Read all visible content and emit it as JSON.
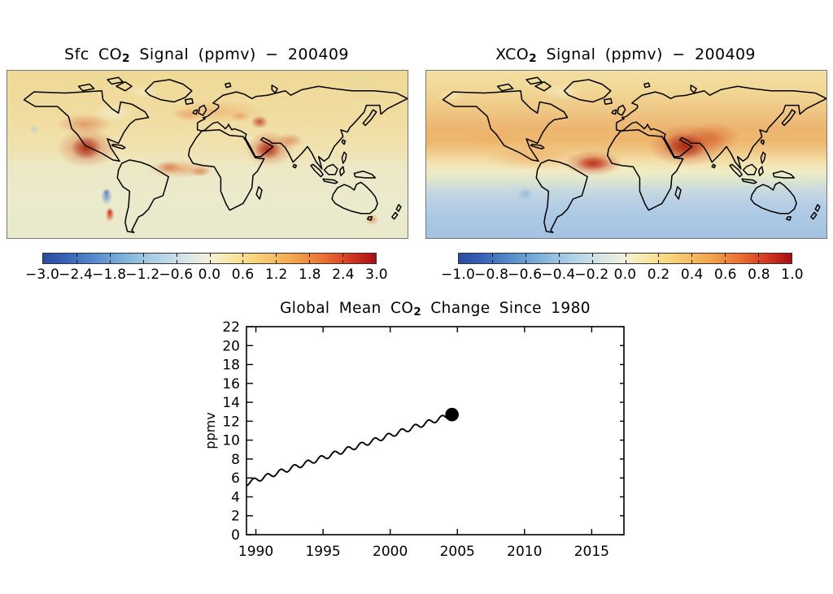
{
  "page": {
    "background": "#ffffff",
    "month_shown": "200409"
  },
  "chart_data": [
    {
      "type": "heatmap",
      "panel": "top-left",
      "title_parts": {
        "prefix": "Sfc CO",
        "sub": "2",
        "suffix": " Signal (ppmv) − 200409"
      },
      "units": "ppmv",
      "colorbar": {
        "min": -3.0,
        "max": 3.0,
        "step": 0.6,
        "tick_values": [
          -3.0,
          -2.4,
          -1.8,
          -1.2,
          -0.6,
          0.0,
          0.6,
          1.2,
          1.8,
          2.4,
          3.0
        ],
        "tick_labels": [
          "−3.0",
          "−2.4",
          "−1.8",
          "−1.2",
          "−0.6",
          "0.0",
          "0.6",
          "1.2",
          "1.8",
          "2.4",
          "3.0"
        ]
      },
      "palette": "blue → white → yellow → orange → dark red",
      "notable_features": [
        "strong positive anomaly (~+3) over central North America",
        "positive anomalies over north India / Himalaya, northeast China, Siberian band, Sahel",
        "small positive spot over southeast Australia",
        "negative (blue) anomaly over central South America with positive spot just south of it",
        "northern hemisphere weakly positive (tan), southern hemisphere near zero (pale)"
      ]
    },
    {
      "type": "heatmap",
      "panel": "top-right",
      "title_parts": {
        "prefix": "XCO",
        "sub": "2",
        "suffix": " Signal (ppmv) − 200409"
      },
      "units": "ppmv",
      "colorbar": {
        "min": -1.0,
        "max": 1.0,
        "step": 0.2,
        "tick_values": [
          -1.0,
          -0.8,
          -0.6,
          -0.4,
          -0.2,
          0.0,
          0.2,
          0.4,
          0.6,
          0.8,
          1.0
        ],
        "tick_labels": [
          "−1.0",
          "−0.8",
          "−0.6",
          "−0.4",
          "−0.2",
          "0.0",
          "0.2",
          "0.4",
          "0.6",
          "0.8",
          "1.0"
        ]
      },
      "palette": "blue → white → yellow → orange → dark red",
      "notable_features": [
        "smooth zonal gradient: positive in northern hemisphere, negative in southern hemisphere",
        "strongest positive (~+1) over north India / Himalaya extending into China",
        "secondary maximum over west Africa / Sahara",
        "weak negative spot over central South America",
        "southern oceans uniformly light blue"
      ]
    },
    {
      "type": "line",
      "panel": "bottom",
      "title_parts": {
        "prefix": "Global Mean CO",
        "sub": "2",
        "suffix": " Change Since 1980"
      },
      "xlabel": "",
      "ylabel": "ppmv",
      "xlim": [
        1989.3,
        2017.4
      ],
      "ylim": [
        0,
        22
      ],
      "xticks": [
        1990,
        1995,
        2000,
        2005,
        2010,
        2015
      ],
      "yticks": [
        0,
        2,
        4,
        6,
        8,
        10,
        12,
        14,
        16,
        18,
        20,
        22
      ],
      "grid": false,
      "series": {
        "name": "global mean CO2 change since 1980",
        "color": "#000000",
        "start_year": 1989.3,
        "end_year": 2004.6,
        "start_value": 5.45,
        "end_value": 12.7,
        "seasonal_amplitude": 0.25,
        "annual_values": {
          "years": [
            1990,
            1991,
            1992,
            1993,
            1994,
            1995,
            1996,
            1997,
            1998,
            1999,
            2000,
            2001,
            2002,
            2003,
            2004
          ],
          "values": [
            5.8,
            6.3,
            6.8,
            7.2,
            7.7,
            8.2,
            8.7,
            9.2,
            9.6,
            10.1,
            10.6,
            11.1,
            11.5,
            12.0,
            12.5
          ]
        }
      },
      "end_marker": {
        "year": 2004.6,
        "value": 12.7,
        "style": "filled black circle"
      }
    }
  ],
  "render": {
    "colormap_stops": [
      "#2a4aa0 0%",
      "#3560b4 6%",
      "#4f85c8 14%",
      "#74a8d6 22%",
      "#9cc4e0 30%",
      "#c2dbe8 38%",
      "#e0e9e6 45%",
      "#f4f0da 50%",
      "#f8e8a6 56%",
      "#f8d67e 63%",
      "#f6bc60 70%",
      "#f09c48 77%",
      "#e87434 84%",
      "#dd4a26 90%",
      "#c62a1c 95%",
      "#a50f15 100%"
    ],
    "maps": [
      {
        "base": "linear-gradient(180deg,#efd997 0%,#f1dda2 30%,#f0e3b2 48%,#ede8c5 58%,#ebeacd 72%,#e9e9cc 100%)",
        "blobs": [
          [
            95,
            66,
            48,
            18,
            "rgba(208,92,48,0.5)"
          ],
          [
            98,
            95,
            52,
            34,
            "rgba(196,60,28,0.55)"
          ],
          [
            97,
            95,
            26,
            20,
            "rgba(148,16,8,0.9)"
          ],
          [
            33,
            72,
            8,
            6,
            "rgba(170,205,228,0.8)"
          ],
          [
            130,
            52,
            36,
            16,
            "rgba(247,241,216,0.6)"
          ],
          [
            168,
            26,
            30,
            12,
            "rgba(247,241,214,0.55)"
          ],
          [
            213,
            121,
            58,
            16,
            "rgba(226,122,56,0.5)"
          ],
          [
            199,
            119,
            22,
            11,
            "rgba(206,77,38,0.6)"
          ],
          [
            237,
            124,
            18,
            9,
            "rgba(212,88,44,0.55)"
          ],
          [
            258,
            50,
            85,
            20,
            "rgba(236,160,90,0.5)"
          ],
          [
            222,
            54,
            28,
            11,
            "rgba(228,124,62,0.45)"
          ],
          [
            310,
            63,
            15,
            11,
            "rgba(192,40,20,0.78)"
          ],
          [
            286,
            56,
            18,
            9,
            "rgba(225,120,60,0.5)"
          ],
          [
            322,
            96,
            42,
            30,
            "rgba(198,64,30,0.6)"
          ],
          [
            320,
            97,
            22,
            17,
            "rgba(150,16,8,0.9)"
          ],
          [
            348,
            86,
            22,
            13,
            "rgba(216,100,50,0.55)"
          ],
          [
            300,
            84,
            16,
            8,
            "rgba(248,243,220,0.6)"
          ],
          [
            122,
            155,
            10,
            14,
            "rgba(95,140,198,0.8)"
          ],
          [
            122,
            150,
            6,
            7,
            "rgba(60,105,180,0.85)"
          ],
          [
            126,
            177,
            8,
            13,
            "rgba(205,60,28,0.85)"
          ],
          [
            126,
            174,
            5,
            6,
            "rgba(178,28,12,0.9)"
          ],
          [
            448,
            183,
            12,
            10,
            "rgba(232,128,56,0.7)"
          ]
        ]
      },
      {
        "base": "linear-gradient(180deg,#f2e0a4 0%,#f1d795 12%,#efc684 24%,#edb670 34%,#eeb76e 42%,#f0c886 48%,#f3dfa8 54%,#f1ecc4 60%,#e0e7cc 65%,#c9dade 71%,#b7cfe6 79%,#abc8e4 88%,#a4c2e1 100%)",
        "blobs": [
          [
            320,
            92,
            66,
            36,
            "rgba(196,52,24,0.65)"
          ],
          [
            318,
            93,
            36,
            22,
            "rgba(140,10,6,0.92)"
          ],
          [
            352,
            82,
            46,
            26,
            "rgba(214,88,40,0.6)"
          ],
          [
            205,
            114,
            50,
            22,
            "rgba(198,48,22,0.7)"
          ],
          [
            205,
            114,
            28,
            12,
            "rgba(165,22,10,0.75)"
          ],
          [
            130,
            107,
            80,
            22,
            "rgba(238,158,86,0.5)"
          ],
          [
            80,
            82,
            45,
            20,
            "rgba(240,170,100,0.45)"
          ],
          [
            168,
            26,
            34,
            14,
            "rgba(246,240,206,0.65)"
          ],
          [
            30,
            32,
            26,
            12,
            "rgba(246,238,202,0.55)"
          ],
          [
            122,
            152,
            14,
            11,
            "rgba(130,168,212,0.6)"
          ]
        ]
      }
    ]
  }
}
